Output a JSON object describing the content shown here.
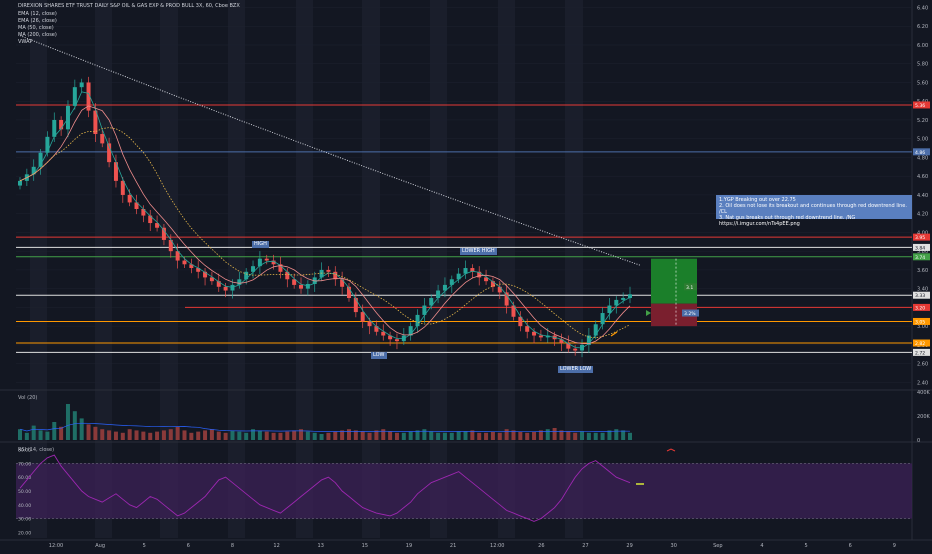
{
  "header": {
    "title": "DIREXION SHARES ETF TRUST DAILY S&P OIL & GAS EXP & PROD BULL 3X, 60, Cboe BZX",
    "indicators": [
      "EMA (12, close)",
      "EMA (26, close)",
      "MA (50, close)",
      "MA (200, close)",
      "VWAP"
    ]
  },
  "annotations": {
    "high": "HIGH",
    "lower_high": "LOWER HIGH",
    "low": "LOW",
    "lower_low": "LOWER LOW",
    "note_lines": [
      "1.YGP Breaking out over 22.75",
      "2. Oil does not lose its breakout and continues through red downtrend line. /CL",
      "3. Nat gus breaks out through red downtrend line. /NG",
      "https://i.imgur.com/nTs4pEE.png"
    ],
    "target_label": "3.1",
    "stop_label": "3.2%"
  },
  "colors": {
    "bg": "#131722",
    "up": "#26a69a",
    "down": "#ef5350",
    "grid": "#1e2230",
    "red_line": "#e53935",
    "blue_line": "#4c6ea9",
    "green_line": "#43a047",
    "orange_line": "#ff9800",
    "white_line": "#e0e0e0",
    "rsi_fill": "#3a2154",
    "rsi_line": "#9c27b0",
    "target_green": "#1b7f2a",
    "stop_red": "#7a1f2e"
  },
  "panes": {
    "volume": {
      "title": "Vol (20)",
      "ticks": [
        "400K",
        "200K",
        "0"
      ]
    },
    "rsi": {
      "title": "RSI (14, close)",
      "ticks": [
        "80.00",
        "70.00",
        "60.00",
        "50.00",
        "40.00",
        "30.00",
        "20.00"
      ]
    }
  },
  "chart_data": {
    "type": "candlestick",
    "title": "DIREXION SHARES ETF TRUST DAILY S&P OIL & GAS EXP & PROD BULL 3X, 60, Cboe BZX",
    "y_ticks": [
      "6.40",
      "6.20",
      "6.00",
      "5.80",
      "5.60",
      "5.40",
      "5.20",
      "5.00",
      "4.80",
      "4.60",
      "4.40",
      "4.20",
      "4.00",
      "3.80",
      "3.60",
      "3.40",
      "3.20",
      "3.00",
      "2.80",
      "2.60",
      "2.40"
    ],
    "ylim": [
      2.34,
      6.48
    ],
    "x_ticks": [
      "12:00",
      "Aug",
      "5",
      "6",
      "8",
      "12",
      "13",
      "15",
      "19",
      "21",
      "12:00",
      "26",
      "27",
      "29",
      "30",
      "Sep",
      "4",
      "5",
      "6",
      "9"
    ],
    "price_levels": [
      {
        "value": 5.36,
        "label": "5.36",
        "color": "red"
      },
      {
        "value": 4.86,
        "label": "4.86",
        "color": "blue"
      },
      {
        "value": 3.95,
        "label": "3.95",
        "color": "red"
      },
      {
        "value": 3.84,
        "label": "3.84",
        "color": "white"
      },
      {
        "value": 3.74,
        "label": "3.74",
        "color": "green"
      },
      {
        "value": 3.33,
        "label": "3.33",
        "color": "white"
      },
      {
        "value": 3.2,
        "label": "3.20",
        "color": "red"
      },
      {
        "value": 3.05,
        "label": "3.05",
        "color": "orange"
      },
      {
        "value": 2.82,
        "label": "2.82",
        "color": "orange"
      },
      {
        "value": 2.72,
        "label": "2.72",
        "color": "white"
      }
    ],
    "close": [
      4.55,
      4.62,
      4.7,
      4.85,
      5.02,
      5.2,
      5.1,
      5.35,
      5.55,
      5.6,
      5.3,
      5.05,
      4.95,
      4.75,
      4.55,
      4.4,
      4.32,
      4.25,
      4.18,
      4.1,
      4.05,
      3.92,
      3.8,
      3.7,
      3.66,
      3.62,
      3.58,
      3.52,
      3.48,
      3.42,
      3.38,
      3.44,
      3.5,
      3.58,
      3.64,
      3.72,
      3.7,
      3.66,
      3.58,
      3.5,
      3.44,
      3.4,
      3.45,
      3.52,
      3.6,
      3.58,
      3.5,
      3.42,
      3.3,
      3.15,
      3.05,
      3.0,
      2.94,
      2.9,
      2.86,
      2.84,
      2.9,
      3.0,
      3.12,
      3.22,
      3.3,
      3.38,
      3.44,
      3.5,
      3.56,
      3.62,
      3.58,
      3.52,
      3.48,
      3.42,
      3.36,
      3.22,
      3.1,
      3.0,
      2.94,
      2.9,
      2.88,
      2.9,
      2.86,
      2.82,
      2.76,
      2.74,
      2.8,
      2.9,
      3.02,
      3.14,
      3.22,
      3.28,
      3.3,
      3.34
    ],
    "volume_k": [
      90,
      60,
      120,
      80,
      70,
      150,
      110,
      300,
      240,
      180,
      130,
      110,
      90,
      80,
      70,
      60,
      90,
      80,
      70,
      60,
      70,
      80,
      90,
      110,
      80,
      60,
      70,
      80,
      90,
      70,
      60,
      80,
      70,
      60,
      90,
      80,
      70,
      60,
      60,
      70,
      80,
      90,
      70,
      60,
      50,
      60,
      70,
      80,
      90,
      80,
      70,
      60,
      80,
      90,
      70,
      60,
      60,
      70,
      80,
      90,
      70,
      60,
      60,
      60,
      70,
      70,
      80,
      60,
      60,
      70,
      60,
      90,
      80,
      70,
      60,
      70,
      80,
      90,
      100,
      80,
      70,
      60,
      70,
      60,
      60,
      60,
      80,
      90,
      80,
      60
    ],
    "rsi": [
      52,
      58,
      64,
      70,
      74,
      76,
      68,
      62,
      56,
      50,
      46,
      44,
      42,
      45,
      48,
      44,
      40,
      38,
      42,
      46,
      44,
      40,
      36,
      32,
      34,
      38,
      42,
      46,
      52,
      58,
      60,
      56,
      52,
      48,
      44,
      40,
      38,
      36,
      34,
      38,
      42,
      46,
      50,
      54,
      58,
      60,
      56,
      50,
      46,
      42,
      38,
      36,
      34,
      33,
      32,
      34,
      38,
      42,
      48,
      52,
      56,
      58,
      60,
      62,
      64,
      60,
      56,
      52,
      48,
      44,
      40,
      36,
      34,
      32,
      30,
      28,
      30,
      34,
      38,
      44,
      52,
      60,
      66,
      70,
      72,
      68,
      64,
      60,
      58,
      56
    ],
    "rsi_levels": [
      70,
      30
    ]
  }
}
